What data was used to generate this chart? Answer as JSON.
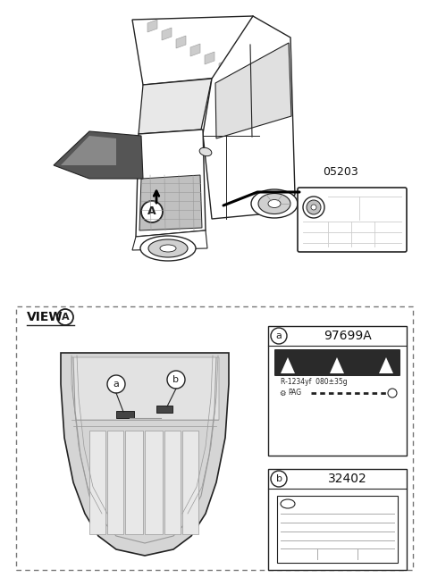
{
  "bg_color": "#ffffff",
  "part_number_top": "05203",
  "part_number_a": "97699A",
  "part_number_b": "32402",
  "dashed_border_color": "#666666",
  "line_color": "#222222",
  "light_gray": "#cccccc",
  "mid_gray": "#999999",
  "body_gray": "#d5d5d5",
  "dark_gray": "#444444",
  "font_color": "#111111",
  "refrigerant_text": "R-1234yf  080±35g",
  "pag_text": "PAG",
  "view_text": "VIEW",
  "circle_A": "A",
  "circle_a": "a",
  "circle_b": "b"
}
